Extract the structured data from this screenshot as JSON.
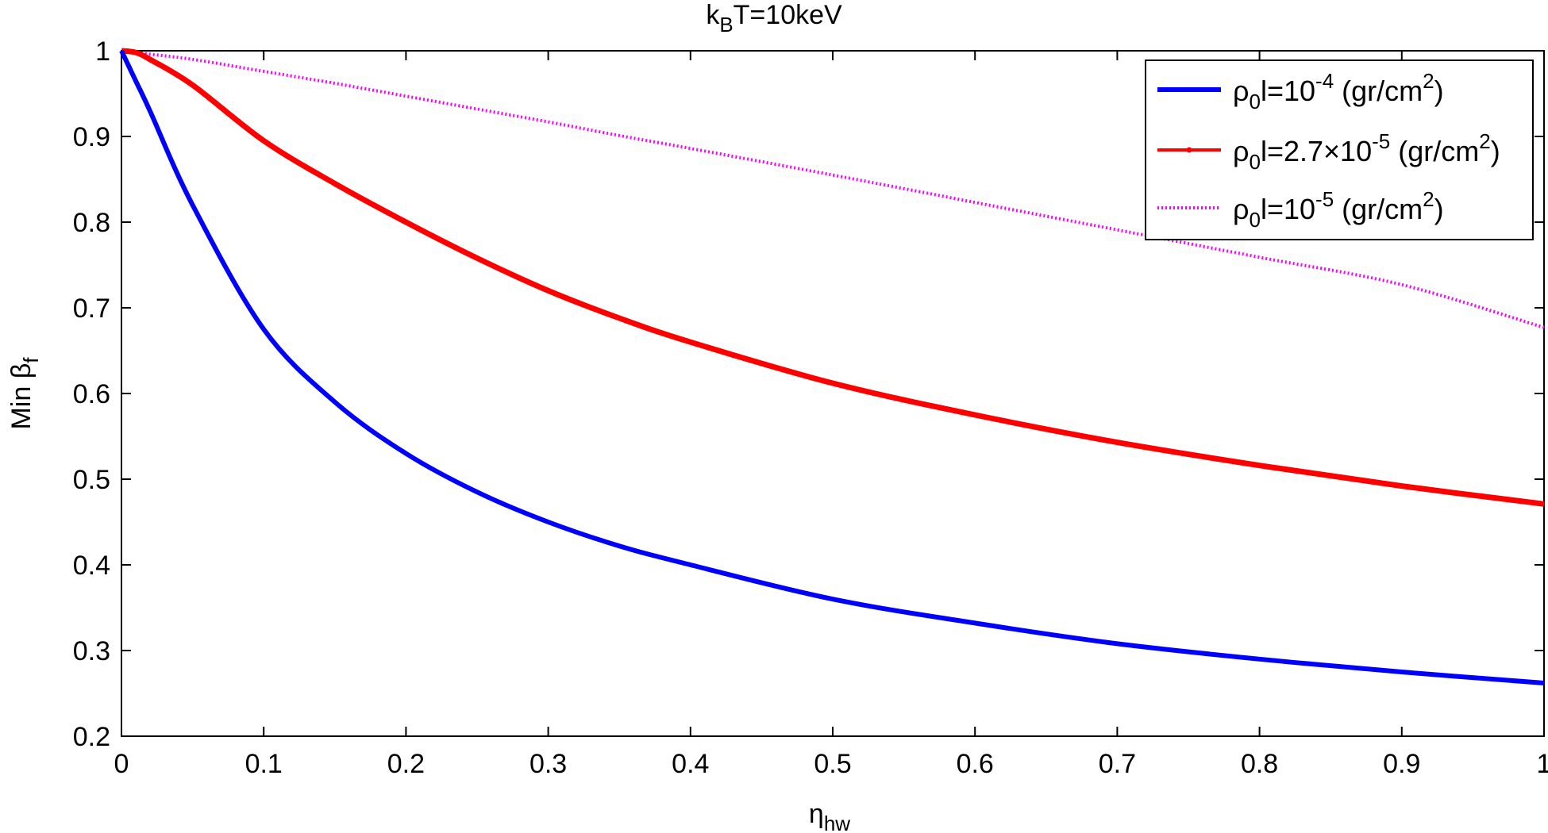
{
  "chart_data": {
    "type": "line",
    "title": {
      "main": "k",
      "sub": "B",
      "rest": "T=10keV"
    },
    "xlabel": {
      "main": "η",
      "sub": "hw"
    },
    "ylabel": {
      "main": "Min β",
      "sub": "f"
    },
    "xlim": [
      0,
      1
    ],
    "ylim": [
      0.2,
      1
    ],
    "xticks": [
      "0",
      "0.1",
      "0.2",
      "0.3",
      "0.4",
      "0.5",
      "0.6",
      "0.7",
      "0.8",
      "0.9",
      "1"
    ],
    "yticks": [
      "0.2",
      "0.3",
      "0.4",
      "0.5",
      "0.6",
      "0.7",
      "0.8",
      "0.9",
      "1"
    ],
    "grid": false,
    "legend_position": "top-right",
    "x": [
      0,
      0.01,
      0.02,
      0.05,
      0.1,
      0.15,
      0.2,
      0.25,
      0.3,
      0.35,
      0.4,
      0.5,
      0.6,
      0.7,
      0.8,
      0.9,
      1.0
    ],
    "series": [
      {
        "legend": {
          "a": "ρ",
          "a_sub": "0",
          "b": "l=10",
          "b_sup": "-4",
          "c": " (gr/cm",
          "c_sup": "2",
          "d": ")"
        },
        "color": "#0000ff",
        "style": "solid",
        "values": [
          1.0,
          0.965,
          0.93,
          0.82,
          0.675,
          0.59,
          0.53,
          0.485,
          0.45,
          0.422,
          0.4,
          0.36,
          0.332,
          0.308,
          0.29,
          0.275,
          0.262
        ]
      },
      {
        "legend": {
          "a": "ρ",
          "a_sub": "0",
          "b": "l=2.7×10",
          "b_sup": "-5",
          "c": " (gr/cm",
          "c_sup": "2",
          "d": ")"
        },
        "color": "#ff0000",
        "style": "solid-marker",
        "values": [
          1.0,
          0.998,
          0.99,
          0.96,
          0.895,
          0.845,
          0.8,
          0.758,
          0.72,
          0.688,
          0.66,
          0.612,
          0.575,
          0.543,
          0.516,
          0.492,
          0.471
        ]
      },
      {
        "legend": {
          "a": "ρ",
          "a_sub": "0",
          "b": "l=10",
          "b_sup": "-5",
          "c": " (gr/cm",
          "c_sup": "2",
          "d": ")"
        },
        "color": "#ff00ff",
        "style": "dotted",
        "values": [
          1.0,
          0.998,
          0.996,
          0.99,
          0.976,
          0.962,
          0.947,
          0.932,
          0.917,
          0.901,
          0.886,
          0.855,
          0.823,
          0.791,
          0.759,
          0.727,
          0.677
        ]
      }
    ]
  }
}
